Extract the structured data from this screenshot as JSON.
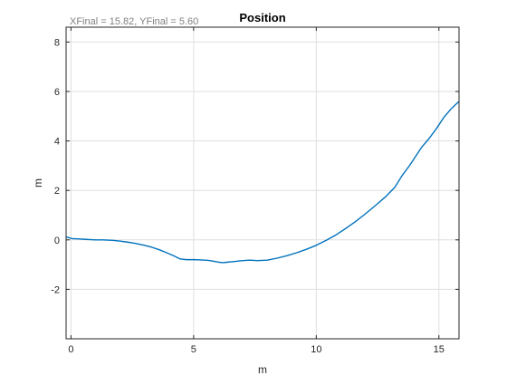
{
  "chart_data": {
    "type": "line",
    "title": "Position",
    "annotation": "XFinal = 15.82, YFinal = 5.60",
    "xlabel": "m",
    "ylabel": "m",
    "xlim": [
      -0.2,
      15.82
    ],
    "ylim": [
      -4,
      8.6
    ],
    "xticks": [
      0,
      5,
      10,
      15
    ],
    "yticks": [
      -2,
      0,
      2,
      4,
      6,
      8
    ],
    "grid": true,
    "colors": {
      "line": "#0072bd",
      "grid": "#dfdfdf",
      "axis": "#262626"
    },
    "series": [
      {
        "x": [
          -0.2,
          -0.05,
          0,
          0.05,
          0.3,
          0.6,
          1.0,
          1.3,
          1.5,
          1.7,
          2.0,
          2.3,
          2.6,
          3.0,
          3.3,
          3.6,
          3.9,
          4.2,
          4.45,
          4.7,
          5.0,
          5.3,
          5.6,
          5.8,
          6.0,
          6.2,
          6.4,
          6.7,
          7.0,
          7.3,
          7.6,
          8.0,
          8.4,
          8.8,
          9.2,
          9.6,
          10.0,
          10.4,
          10.8,
          11.2,
          11.6,
          12.0,
          12.4,
          12.8,
          13.2,
          13.5,
          13.8,
          14.0,
          14.3,
          14.6,
          14.9,
          15.2,
          15.5,
          15.82
        ],
        "y": [
          0.12,
          0.08,
          0.06,
          0.05,
          0.04,
          0.02,
          0.0,
          0.0,
          -0.01,
          -0.02,
          -0.05,
          -0.09,
          -0.14,
          -0.22,
          -0.3,
          -0.4,
          -0.52,
          -0.65,
          -0.77,
          -0.8,
          -0.8,
          -0.81,
          -0.83,
          -0.86,
          -0.9,
          -0.92,
          -0.9,
          -0.87,
          -0.84,
          -0.82,
          -0.84,
          -0.82,
          -0.74,
          -0.64,
          -0.52,
          -0.38,
          -0.22,
          -0.02,
          0.2,
          0.46,
          0.74,
          1.05,
          1.38,
          1.72,
          2.12,
          2.6,
          3.0,
          3.3,
          3.75,
          4.1,
          4.5,
          4.95,
          5.3,
          5.6
        ]
      }
    ]
  }
}
